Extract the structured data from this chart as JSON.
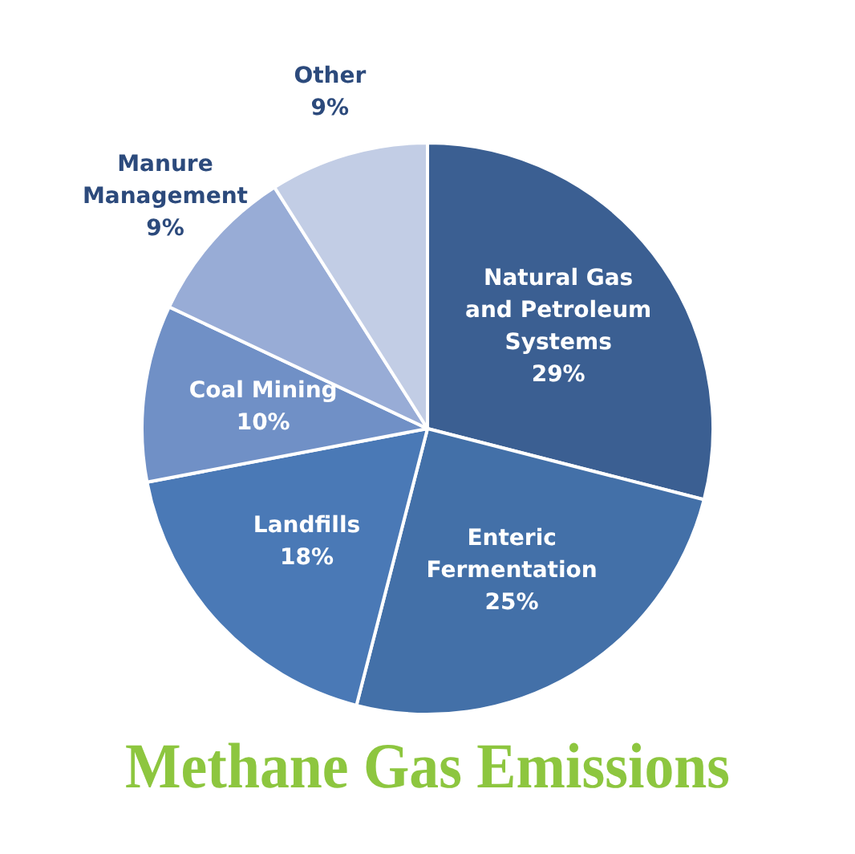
{
  "chart_data": {
    "type": "pie",
    "title": "Methane Gas Emissions",
    "categories": [
      "Natural Gas and Petroleum Systems",
      "Enteric Fermentation",
      "Landfills",
      "Coal Mining",
      "Manure Management",
      "Other"
    ],
    "values": [
      29,
      25,
      18,
      10,
      9,
      9
    ],
    "value_labels": [
      "29%",
      "25%",
      "18%",
      "10%",
      "9%",
      "9%"
    ],
    "colors": [
      "#3b5f92",
      "#4370a8",
      "#4a79b6",
      "#7090c6",
      "#98acd6",
      "#c2cde5"
    ],
    "legend": false
  }
}
